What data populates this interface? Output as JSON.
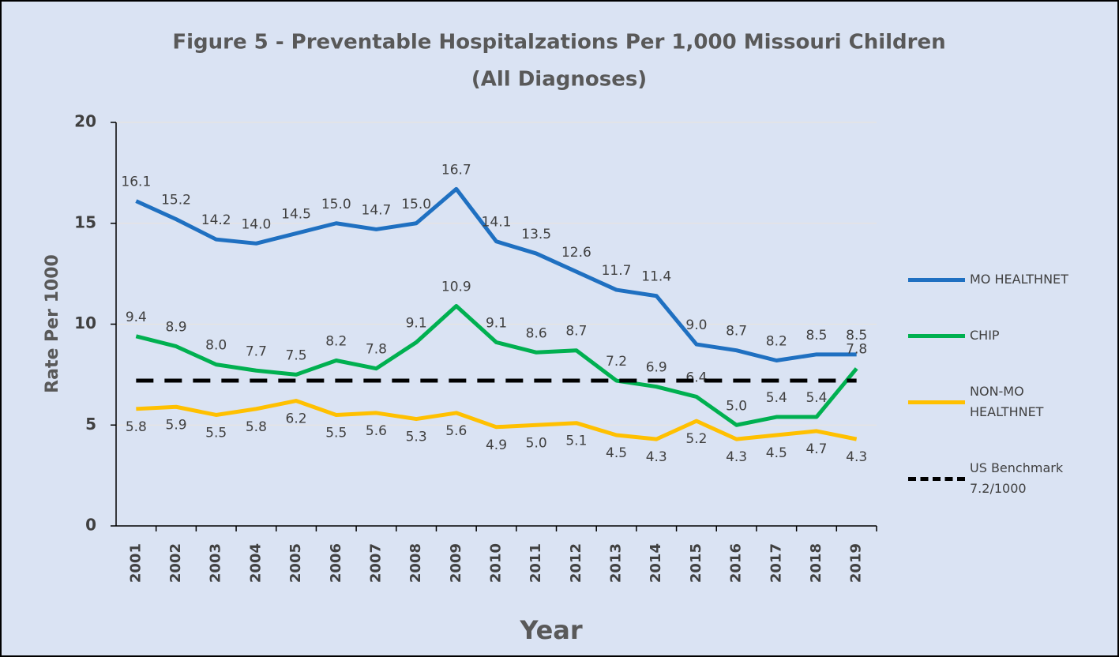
{
  "chart_data": {
    "type": "line",
    "title": "Figure 5 - Preventable Hospitalzations Per 1,000 Missouri Children",
    "subtitle": "(All Diagnoses)",
    "x_label": "Year",
    "y_label": "Rate Per 1000",
    "categories": [
      "2001",
      "2002",
      "2003",
      "2004",
      "2005",
      "2006",
      "2007",
      "2008",
      "2009",
      "2010",
      "2011",
      "2012",
      "2013",
      "2014",
      "2015",
      "2016",
      "2017",
      "2018",
      "2019"
    ],
    "series": [
      {
        "name": "MO HEALTHNET",
        "color": "#1f70c1",
        "values": [
          16.1,
          15.2,
          14.2,
          14.0,
          14.5,
          15.0,
          14.7,
          15.0,
          16.7,
          14.1,
          13.5,
          12.6,
          11.7,
          11.4,
          9.0,
          8.7,
          8.2,
          8.5,
          8.5
        ],
        "value_labels": [
          "16.1",
          "15.2",
          "14.2",
          "14.0",
          "14.5",
          "15.0",
          "14.7",
          "15.0",
          "16.7",
          "14.1",
          "13.5",
          "12.6",
          "11.7",
          "11.4",
          "9.0",
          "8.7",
          "8.2",
          "8.5",
          "8.5"
        ]
      },
      {
        "name": "CHIP",
        "color": "#00b050",
        "values": [
          9.4,
          8.9,
          8.0,
          7.7,
          7.5,
          8.2,
          7.8,
          9.1,
          10.9,
          9.1,
          8.6,
          8.7,
          7.2,
          6.9,
          6.4,
          5.0,
          5.4,
          5.4,
          7.8
        ],
        "value_labels": [
          "9.4",
          "8.9",
          "8.0",
          "7.7",
          "7.5",
          "8.2",
          "7.8",
          "9.1",
          "10.9",
          "9.1",
          "8.6",
          "8.7",
          "7.2",
          "6.9",
          "6.4",
          "5.0",
          "5.4",
          "5.4",
          "7.8"
        ]
      },
      {
        "name": "NON-MO HEALTHNET",
        "color": "#ffc000",
        "values": [
          5.8,
          5.9,
          5.5,
          5.8,
          6.2,
          5.5,
          5.6,
          5.3,
          5.6,
          4.9,
          5.0,
          5.1,
          4.5,
          4.3,
          5.2,
          4.3,
          4.5,
          4.7,
          4.3
        ],
        "value_labels": [
          "5.8",
          "5.9",
          "5.5",
          "5.8",
          "6.2",
          "5.5",
          "5.6",
          "5.3",
          "5.6",
          "4.9",
          "5.0",
          "5.1",
          "4.5",
          "4.3",
          "5.2",
          "4.3",
          "4.5",
          "4.7",
          "4.3"
        ]
      },
      {
        "name": "US Benchmark 7.2/1000",
        "color": "#000000",
        "dashed": true,
        "values": [
          7.2,
          7.2,
          7.2,
          7.2,
          7.2,
          7.2,
          7.2,
          7.2,
          7.2,
          7.2,
          7.2,
          7.2,
          7.2,
          7.2,
          7.2,
          7.2,
          7.2,
          7.2,
          7.2
        ]
      }
    ],
    "ylim": [
      0,
      20
    ],
    "yticks": [
      0,
      5,
      10,
      15,
      20
    ],
    "grid": true,
    "legend": "right"
  }
}
